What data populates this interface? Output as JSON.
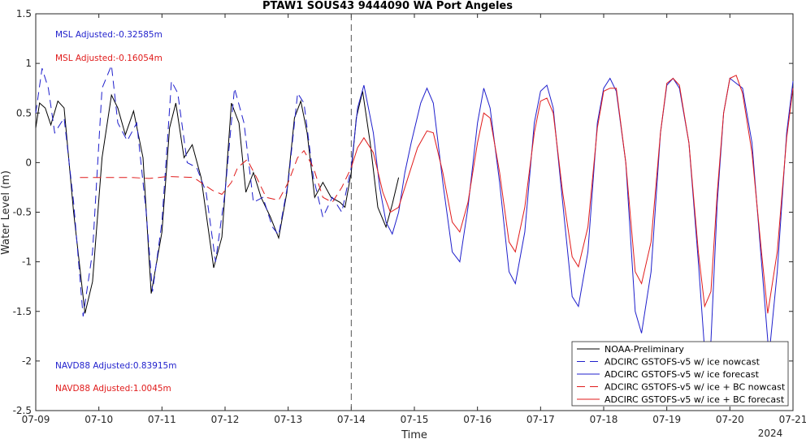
{
  "chart_data": {
    "type": "line",
    "title": "PTAW1 SOUS43 9444090 WA Port Angeles",
    "xlabel": "Time",
    "ylabel": "Water Level (m)",
    "x_ticks": [
      "07-09",
      "07-10",
      "07-11",
      "07-12",
      "07-13",
      "07-14",
      "07-15",
      "07-16",
      "07-17",
      "07-18",
      "07-19",
      "07-20",
      "07-21"
    ],
    "x_year_label": "2024",
    "xlim_days": [
      9,
      21
    ],
    "y_ticks": [
      "-2.5",
      "-2",
      "-1.5",
      "-1",
      "-0.5",
      "0",
      "0.5",
      "1",
      "1.5"
    ],
    "ylim": [
      -2.5,
      1.5
    ],
    "nowcast_forecast_divider": "07-14",
    "grid": false,
    "legend_position": "bottom-right",
    "annotations": [
      {
        "text": "MSL Adjusted:-0.32585m",
        "color": "#1f1fcc"
      },
      {
        "text": "MSL Adjusted:-0.16054m",
        "color": "#e01b1b"
      },
      {
        "text": "NAVD88 Adjusted:0.83915m",
        "color": "#1f1fcc"
      },
      {
        "text": "NAVD88 Adjusted:1.0045m",
        "color": "#e01b1b"
      }
    ],
    "series": [
      {
        "name": "NOAA-Preliminary",
        "color": "#000000",
        "dash": "solid",
        "x": [
          9.0,
          9.06,
          9.15,
          9.24,
          9.35,
          9.45,
          9.6,
          9.78,
          9.9,
          10.05,
          10.2,
          10.3,
          10.42,
          10.55,
          10.7,
          10.83,
          11.0,
          11.12,
          11.22,
          11.35,
          11.48,
          11.62,
          11.82,
          11.95,
          12.1,
          12.22,
          12.33,
          12.45,
          12.57,
          12.72,
          12.85,
          12.98,
          13.1,
          13.2,
          13.3,
          13.42,
          13.55,
          13.68,
          13.82,
          13.9,
          14.0,
          14.08,
          14.18,
          14.3,
          14.42,
          14.55,
          14.65,
          14.75
        ],
        "y": [
          0.35,
          0.6,
          0.55,
          0.38,
          0.62,
          0.55,
          -0.5,
          -1.52,
          -1.2,
          0.05,
          0.68,
          0.55,
          0.28,
          0.52,
          0.05,
          -1.32,
          -0.7,
          0.35,
          0.6,
          0.05,
          0.18,
          -0.15,
          -1.06,
          -0.75,
          0.6,
          0.4,
          -0.3,
          -0.1,
          -0.35,
          -0.55,
          -0.76,
          -0.3,
          0.45,
          0.62,
          0.3,
          -0.35,
          -0.2,
          -0.35,
          -0.4,
          -0.45,
          -0.1,
          0.45,
          0.72,
          0.2,
          -0.45,
          -0.65,
          -0.42,
          -0.15
        ]
      },
      {
        "name": "ADCIRC GSTOFS-v5 w/ ice nowcast",
        "color": "#1f1fcc",
        "dash": "long-dash",
        "x": [
          9.0,
          9.1,
          9.2,
          9.3,
          9.45,
          9.6,
          9.75,
          9.9,
          10.05,
          10.2,
          10.3,
          10.45,
          10.6,
          10.75,
          10.85,
          11.0,
          11.15,
          11.25,
          11.4,
          11.55,
          11.7,
          11.85,
          12.0,
          12.15,
          12.3,
          12.45,
          12.6,
          12.75,
          12.85,
          13.0,
          13.15,
          13.25,
          13.4,
          13.55,
          13.7,
          13.85,
          14.0
        ],
        "y": [
          0.5,
          0.95,
          0.75,
          0.3,
          0.45,
          -0.4,
          -1.55,
          -0.9,
          0.75,
          0.98,
          0.4,
          0.22,
          0.4,
          -0.5,
          -1.3,
          -0.6,
          0.82,
          0.7,
          0.0,
          -0.05,
          -0.3,
          -1.0,
          -0.3,
          0.75,
          0.4,
          -0.4,
          -0.35,
          -0.65,
          -0.73,
          -0.2,
          0.7,
          0.6,
          -0.15,
          -0.55,
          -0.35,
          -0.5,
          -0.05
        ]
      },
      {
        "name": "ADCIRC GSTOFS-v5 w/ ice forecast",
        "color": "#1f1fcc",
        "dash": "solid",
        "x": [
          14.0,
          14.1,
          14.2,
          14.35,
          14.45,
          14.55,
          14.65,
          14.75,
          14.85,
          14.95,
          15.1,
          15.2,
          15.3,
          15.45,
          15.6,
          15.72,
          15.85,
          16.0,
          16.1,
          16.2,
          16.35,
          16.5,
          16.6,
          16.75,
          16.9,
          17.0,
          17.1,
          17.2,
          17.35,
          17.5,
          17.6,
          17.75,
          17.9,
          18.0,
          18.1,
          18.2,
          18.35,
          18.5,
          18.6,
          18.75,
          18.9,
          19.0,
          19.1,
          19.2,
          19.35,
          19.5,
          19.6,
          19.7,
          19.8,
          19.9,
          20.0,
          20.1,
          20.2,
          20.35,
          20.5,
          20.62,
          20.75,
          20.9,
          21.0
        ],
        "y": [
          -0.05,
          0.55,
          0.78,
          0.3,
          -0.25,
          -0.6,
          -0.72,
          -0.5,
          -0.1,
          0.2,
          0.6,
          0.75,
          0.6,
          -0.2,
          -0.9,
          -1.0,
          -0.45,
          0.4,
          0.75,
          0.55,
          -0.2,
          -1.1,
          -1.22,
          -0.7,
          0.4,
          0.72,
          0.78,
          0.55,
          -0.4,
          -1.35,
          -1.45,
          -0.9,
          0.4,
          0.75,
          0.85,
          0.72,
          0.0,
          -1.5,
          -1.72,
          -1.1,
          0.3,
          0.78,
          0.85,
          0.75,
          0.2,
          -1.0,
          -1.9,
          -1.8,
          -0.4,
          0.5,
          0.85,
          0.8,
          0.75,
          0.2,
          -1.0,
          -1.95,
          -1.1,
          0.3,
          0.82
        ]
      },
      {
        "name": "ADCIRC GSTOFS-v5 w/ ice + BC nowcast",
        "color": "#e01b1b",
        "dash": "long-dash",
        "x": [
          9.7,
          9.85,
          10.2,
          10.5,
          10.8,
          11.1,
          11.5,
          11.8,
          11.95,
          12.1,
          12.2,
          12.35,
          12.5,
          12.65,
          12.85,
          13.0,
          13.15,
          13.25,
          13.4,
          13.55,
          13.7,
          13.85,
          14.0
        ],
        "y": [
          -0.15,
          -0.15,
          -0.15,
          -0.15,
          -0.16,
          -0.14,
          -0.15,
          -0.28,
          -0.32,
          -0.2,
          -0.05,
          0.03,
          -0.15,
          -0.35,
          -0.38,
          -0.2,
          0.05,
          0.12,
          -0.05,
          -0.35,
          -0.4,
          -0.25,
          -0.05
        ]
      },
      {
        "name": "ADCIRC GSTOFS-v5 w/ ice + BC forecast",
        "color": "#e01b1b",
        "dash": "solid",
        "x": [
          14.0,
          14.1,
          14.2,
          14.35,
          14.5,
          14.62,
          14.75,
          14.9,
          15.05,
          15.2,
          15.3,
          15.45,
          15.6,
          15.72,
          15.85,
          16.0,
          16.1,
          16.2,
          16.35,
          16.5,
          16.6,
          16.75,
          16.9,
          17.0,
          17.1,
          17.2,
          17.35,
          17.5,
          17.6,
          17.75,
          17.9,
          18.0,
          18.1,
          18.2,
          18.35,
          18.5,
          18.6,
          18.75,
          18.9,
          19.0,
          19.1,
          19.2,
          19.35,
          19.5,
          19.6,
          19.7,
          19.8,
          19.9,
          20.0,
          20.1,
          20.2,
          20.35,
          20.5,
          20.6,
          20.75,
          20.9,
          21.0
        ],
        "y": [
          -0.05,
          0.15,
          0.25,
          0.1,
          -0.3,
          -0.5,
          -0.45,
          -0.15,
          0.15,
          0.32,
          0.3,
          -0.1,
          -0.6,
          -0.7,
          -0.4,
          0.2,
          0.5,
          0.45,
          -0.1,
          -0.8,
          -0.9,
          -0.45,
          0.3,
          0.62,
          0.65,
          0.5,
          -0.3,
          -0.95,
          -1.05,
          -0.65,
          0.35,
          0.72,
          0.75,
          0.75,
          0.0,
          -1.1,
          -1.22,
          -0.8,
          0.3,
          0.8,
          0.85,
          0.78,
          0.2,
          -0.9,
          -1.45,
          -1.3,
          -0.3,
          0.5,
          0.85,
          0.88,
          0.7,
          0.1,
          -0.9,
          -1.52,
          -0.9,
          0.25,
          0.75
        ]
      }
    ]
  }
}
